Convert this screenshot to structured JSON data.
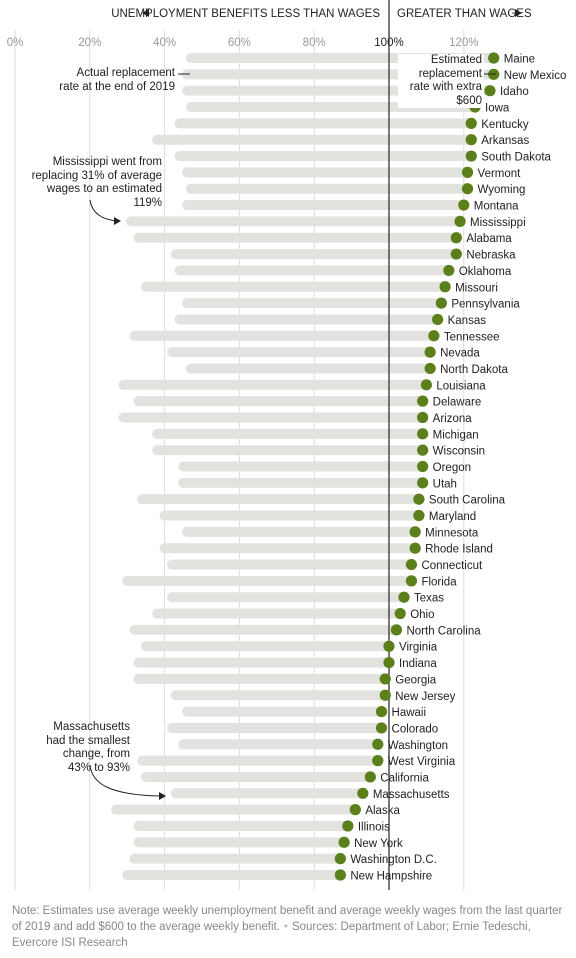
{
  "header": {
    "left_label": "UNEMPLOYMENT BENEFITS LESS THAN WAGES",
    "right_label": "GREATER THAN WAGES"
  },
  "annotations": {
    "actual_rate": "Actual replacement rate at the end of 2019",
    "estimated_rate": "Estimated replacement rate with extra $600",
    "mississippi": "Mississippi went from replacing 31% of average wages to an estimated 119%",
    "massachusetts": "Massachusetts had the smallest change, from 43% to 93%"
  },
  "note": {
    "text": "Note: Estimates use average weekly unemployment benefit and average weekly wages from the last quarter of 2019 and add $600 to the average weekly benefit.",
    "sources": "Sources: Department of Labor; Ernie Tedeschi, Evercore ISI Research"
  },
  "colors": {
    "dot": "#5b7f1a",
    "bar": "#e2e2de",
    "grid": "#dddddd",
    "reference_line": "#333333"
  },
  "chart_data": {
    "type": "dot-range",
    "x_unit": "%",
    "xlim": [
      0,
      130
    ],
    "x_ticks": [
      0,
      20,
      40,
      60,
      80,
      100,
      120
    ],
    "x_tick_labels": [
      "0%",
      "20%",
      "40%",
      "60%",
      "80%",
      "100%",
      "120%"
    ],
    "reference_value": 100,
    "series": [
      {
        "name": "Actual replacement rate at the end of 2019",
        "key": "actual"
      },
      {
        "name": "Estimated replacement rate with extra $600",
        "key": "estimated"
      }
    ],
    "states": [
      {
        "name": "Maine",
        "actual": 47,
        "estimated": 128
      },
      {
        "name": "New Mexico",
        "actual": 46,
        "estimated": 128
      },
      {
        "name": "Idaho",
        "actual": 46,
        "estimated": 127
      },
      {
        "name": "Iowa",
        "actual": 47,
        "estimated": 123
      },
      {
        "name": "Kentucky",
        "actual": 44,
        "estimated": 122
      },
      {
        "name": "Arkansas",
        "actual": 38,
        "estimated": 122
      },
      {
        "name": "South Dakota",
        "actual": 44,
        "estimated": 122
      },
      {
        "name": "Vermont",
        "actual": 46,
        "estimated": 121
      },
      {
        "name": "Wyoming",
        "actual": 47,
        "estimated": 121
      },
      {
        "name": "Montana",
        "actual": 46,
        "estimated": 120
      },
      {
        "name": "Mississippi",
        "actual": 31,
        "estimated": 119
      },
      {
        "name": "Alabama",
        "actual": 33,
        "estimated": 118
      },
      {
        "name": "Nebraska",
        "actual": 43,
        "estimated": 118
      },
      {
        "name": "Oklahoma",
        "actual": 44,
        "estimated": 116
      },
      {
        "name": "Missouri",
        "actual": 35,
        "estimated": 115
      },
      {
        "name": "Pennsylvania",
        "actual": 46,
        "estimated": 114
      },
      {
        "name": "Kansas",
        "actual": 44,
        "estimated": 113
      },
      {
        "name": "Tennessee",
        "actual": 32,
        "estimated": 112
      },
      {
        "name": "Nevada",
        "actual": 42,
        "estimated": 111
      },
      {
        "name": "North Dakota",
        "actual": 47,
        "estimated": 111
      },
      {
        "name": "Louisiana",
        "actual": 29,
        "estimated": 110
      },
      {
        "name": "Delaware",
        "actual": 33,
        "estimated": 109
      },
      {
        "name": "Arizona",
        "actual": 29,
        "estimated": 109
      },
      {
        "name": "Michigan",
        "actual": 38,
        "estimated": 109
      },
      {
        "name": "Wisconsin",
        "actual": 38,
        "estimated": 109
      },
      {
        "name": "Oregon",
        "actual": 45,
        "estimated": 109
      },
      {
        "name": "Utah",
        "actual": 45,
        "estimated": 109
      },
      {
        "name": "South Carolina",
        "actual": 34,
        "estimated": 108
      },
      {
        "name": "Maryland",
        "actual": 40,
        "estimated": 108
      },
      {
        "name": "Minnesota",
        "actual": 46,
        "estimated": 107
      },
      {
        "name": "Rhode Island",
        "actual": 40,
        "estimated": 107
      },
      {
        "name": "Connecticut",
        "actual": 42,
        "estimated": 106
      },
      {
        "name": "Florida",
        "actual": 30,
        "estimated": 106
      },
      {
        "name": "Texas",
        "actual": 42,
        "estimated": 104
      },
      {
        "name": "Ohio",
        "actual": 38,
        "estimated": 103
      },
      {
        "name": "North Carolina",
        "actual": 32,
        "estimated": 102
      },
      {
        "name": "Virginia",
        "actual": 35,
        "estimated": 100
      },
      {
        "name": "Indiana",
        "actual": 33,
        "estimated": 100
      },
      {
        "name": "Georgia",
        "actual": 33,
        "estimated": 99
      },
      {
        "name": "New Jersey",
        "actual": 43,
        "estimated": 99
      },
      {
        "name": "Hawaii",
        "actual": 46,
        "estimated": 98
      },
      {
        "name": "Colorado",
        "actual": 42,
        "estimated": 98
      },
      {
        "name": "Washington",
        "actual": 45,
        "estimated": 97
      },
      {
        "name": "West Virginia",
        "actual": 34,
        "estimated": 97
      },
      {
        "name": "California",
        "actual": 35,
        "estimated": 95
      },
      {
        "name": "Massachusetts",
        "actual": 43,
        "estimated": 93
      },
      {
        "name": "Alaska",
        "actual": 27,
        "estimated": 91
      },
      {
        "name": "Illinois",
        "actual": 33,
        "estimated": 89
      },
      {
        "name": "New York",
        "actual": 33,
        "estimated": 88
      },
      {
        "name": "Washington D.C.",
        "actual": 32,
        "estimated": 87
      },
      {
        "name": "New Hampshire",
        "actual": 30,
        "estimated": 87
      }
    ]
  }
}
